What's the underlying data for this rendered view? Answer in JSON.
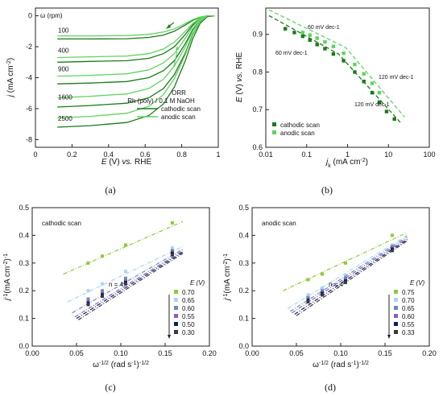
{
  "panels": {
    "a": "(a)",
    "b": "(b)",
    "c": "(c)",
    "d": "(d)"
  },
  "chart_data": [
    {
      "panel": "a",
      "type": "line",
      "xlabel": "E (V) vs. RHE",
      "ylabel": "j (mA cm-2)",
      "xlim": [
        0.0,
        1.0
      ],
      "ylim": [
        -8.5,
        0.5
      ],
      "xticks": [
        0.0,
        0.2,
        0.4,
        0.6,
        0.8,
        1.0
      ],
      "yticks": [
        0,
        -2,
        -4,
        -6,
        -8
      ],
      "omega_label": "ω (rpm)",
      "rotation_labels": [
        {
          "text": "100",
          "y": -1.3
        },
        {
          "text": "400",
          "y": -2.6
        },
        {
          "text": "900",
          "y": -3.8
        },
        {
          "text": "1600",
          "y": -5.6
        },
        {
          "text": "2500",
          "y": -7.0
        }
      ],
      "legend_title": [
        "ORR",
        "Rh (poly) / 0.1 M NaOH"
      ],
      "legend_position": "bottom-right",
      "legend": [
        {
          "name": "cathodic scan",
          "color": "#1b7a1b"
        },
        {
          "name": "anodic scan",
          "color": "#5fd35f"
        }
      ],
      "series": [
        {
          "rpm": 100,
          "scan": "cathodic",
          "x": [
            0.12,
            0.3,
            0.5,
            0.62,
            0.7,
            0.76,
            0.82,
            0.86,
            0.9,
            0.94,
            0.98
          ],
          "y": [
            -1.5,
            -1.5,
            -1.48,
            -1.4,
            -1.25,
            -1.0,
            -0.6,
            -0.3,
            -0.1,
            0.0,
            0.0
          ]
        },
        {
          "rpm": 100,
          "scan": "anodic",
          "x": [
            0.12,
            0.3,
            0.5,
            0.62,
            0.7,
            0.76,
            0.82,
            0.86,
            0.9,
            0.94,
            0.98
          ],
          "y": [
            -1.3,
            -1.3,
            -1.28,
            -1.2,
            -1.05,
            -0.85,
            -0.5,
            -0.25,
            -0.08,
            0.0,
            0.0
          ]
        },
        {
          "rpm": 400,
          "scan": "cathodic",
          "x": [
            0.12,
            0.3,
            0.5,
            0.62,
            0.7,
            0.76,
            0.82,
            0.86,
            0.9,
            0.94,
            0.98
          ],
          "y": [
            -3.0,
            -2.95,
            -2.9,
            -2.75,
            -2.45,
            -2.0,
            -1.2,
            -0.6,
            -0.2,
            0.0,
            0.0
          ]
        },
        {
          "rpm": 400,
          "scan": "anodic",
          "x": [
            0.12,
            0.3,
            0.5,
            0.62,
            0.7,
            0.76,
            0.82,
            0.86,
            0.9,
            0.94,
            0.98
          ],
          "y": [
            -2.7,
            -2.65,
            -2.6,
            -2.45,
            -2.15,
            -1.7,
            -1.0,
            -0.5,
            -0.15,
            0.0,
            0.0
          ]
        },
        {
          "rpm": 900,
          "scan": "cathodic",
          "x": [
            0.12,
            0.3,
            0.5,
            0.62,
            0.7,
            0.76,
            0.82,
            0.86,
            0.9,
            0.94,
            0.98
          ],
          "y": [
            -4.4,
            -4.35,
            -4.25,
            -4.0,
            -3.55,
            -2.9,
            -1.8,
            -0.9,
            -0.3,
            0.0,
            0.0
          ]
        },
        {
          "rpm": 900,
          "scan": "anodic",
          "x": [
            0.12,
            0.3,
            0.5,
            0.62,
            0.7,
            0.76,
            0.82,
            0.86,
            0.9,
            0.94,
            0.98
          ],
          "y": [
            -3.9,
            -3.85,
            -3.75,
            -3.5,
            -3.05,
            -2.45,
            -1.45,
            -0.7,
            -0.2,
            0.0,
            0.0
          ]
        },
        {
          "rpm": 1600,
          "scan": "cathodic",
          "x": [
            0.12,
            0.3,
            0.5,
            0.62,
            0.7,
            0.76,
            0.82,
            0.86,
            0.9,
            0.94,
            0.98
          ],
          "y": [
            -5.9,
            -5.8,
            -5.65,
            -5.3,
            -4.7,
            -3.8,
            -2.4,
            -1.2,
            -0.4,
            -0.05,
            0.0
          ]
        },
        {
          "rpm": 1600,
          "scan": "anodic",
          "x": [
            0.12,
            0.3,
            0.5,
            0.62,
            0.7,
            0.76,
            0.82,
            0.86,
            0.9,
            0.94,
            0.98
          ],
          "y": [
            -5.3,
            -5.2,
            -5.05,
            -4.7,
            -4.1,
            -3.25,
            -2.0,
            -1.0,
            -0.3,
            0.0,
            0.0
          ]
        },
        {
          "rpm": 2500,
          "scan": "cathodic",
          "x": [
            0.12,
            0.3,
            0.5,
            0.62,
            0.7,
            0.76,
            0.82,
            0.86,
            0.9,
            0.94,
            0.98
          ],
          "y": [
            -7.2,
            -7.1,
            -6.9,
            -6.45,
            -5.7,
            -4.6,
            -2.9,
            -1.5,
            -0.5,
            -0.05,
            0.0
          ]
        },
        {
          "rpm": 2500,
          "scan": "anodic",
          "x": [
            0.12,
            0.3,
            0.5,
            0.62,
            0.7,
            0.76,
            0.82,
            0.86,
            0.9,
            0.94,
            0.98
          ],
          "y": [
            -6.6,
            -6.5,
            -6.3,
            -5.85,
            -5.1,
            -4.05,
            -2.5,
            -1.25,
            -0.4,
            0.0,
            0.0
          ]
        }
      ]
    },
    {
      "panel": "b",
      "type": "scatter",
      "xlabel": "jk (mA cm-2)",
      "ylabel": "E (V) vs. RHE",
      "xscale": "log",
      "xlim": [
        0.01,
        100
      ],
      "ylim": [
        0.6,
        0.97
      ],
      "xticks": [
        0.01,
        0.1,
        1,
        10,
        100
      ],
      "xtick_labels": [
        "0.01",
        "0.1",
        "1",
        "10",
        "100"
      ],
      "yticks": [
        0.6,
        0.7,
        0.8,
        0.9
      ],
      "annotations": [
        "60 mV dec-1",
        "60 mV dec-1",
        "120 mV dec-1",
        "120 mV dec-1"
      ],
      "legend_position": "bottom-left",
      "legend": [
        {
          "name": "cathodic scan",
          "color": "#1b7a1b"
        },
        {
          "name": "anodic scan",
          "color": "#5fd35f"
        }
      ],
      "series": [
        {
          "name": "cathodic scan",
          "color": "#1b7a1b",
          "x": [
            0.03,
            0.05,
            0.08,
            0.12,
            0.18,
            0.28,
            0.45,
            0.8,
            1.5,
            2.5,
            4,
            6,
            9,
            14
          ],
          "y": [
            0.915,
            0.905,
            0.895,
            0.885,
            0.873,
            0.862,
            0.848,
            0.83,
            0.8,
            0.775,
            0.745,
            0.72,
            0.695,
            0.675
          ]
        },
        {
          "name": "anodic scan",
          "color": "#5fd35f",
          "x": [
            0.08,
            0.12,
            0.18,
            0.28,
            0.45,
            0.8,
            1.5,
            2.5,
            4,
            6
          ],
          "y": [
            0.905,
            0.898,
            0.89,
            0.88,
            0.868,
            0.85,
            0.82,
            0.795,
            0.77,
            0.745
          ]
        }
      ],
      "fit_lines": [
        {
          "color": "#1b7a1b",
          "x": [
            0.012,
            0.6,
            20
          ],
          "y": [
            0.95,
            0.848,
            0.665
          ]
        },
        {
          "color": "#5fd35f",
          "x": [
            0.012,
            0.9,
            25
          ],
          "y": [
            0.965,
            0.865,
            0.68
          ]
        }
      ]
    },
    {
      "panel": "c",
      "type": "scatter",
      "xlabel": "ω-1/2 (rad s-1)-1/2",
      "ylabel": "j-1 (mA cm-2)-1",
      "xlim": [
        0.0,
        0.2
      ],
      "ylim": [
        0.0,
        0.5
      ],
      "xticks": [
        0.0,
        0.05,
        0.1,
        0.15,
        0.2
      ],
      "xtick_labels": [
        "0.00",
        "0.05",
        "0.10",
        "0.15",
        "0.20"
      ],
      "yticks": [
        0.0,
        0.1,
        0.2,
        0.3,
        0.4,
        0.5
      ],
      "ytick_labels": [
        "0.0",
        "0.1",
        "0.2",
        "0.3",
        "0.4",
        "0.5"
      ],
      "annotation": "cathodic scan",
      "n_label": "n = 4",
      "legend_title": "E (V)",
      "legend_position": "bottom-right",
      "x": [
        0.0632,
        0.0791,
        0.1054,
        0.1581
      ],
      "series": [
        {
          "name": "0.70",
          "color": "#8fc93a",
          "values": [
            0.3,
            0.325,
            0.365,
            0.445
          ],
          "fit": [
            0.035,
            0.17,
            0.26,
            0.45
          ]
        },
        {
          "name": "0.65",
          "color": "#a9d4f5",
          "values": [
            0.2,
            0.225,
            0.27,
            0.355
          ],
          "fit": [
            0.04,
            0.17,
            0.16,
            0.36
          ]
        },
        {
          "name": "0.60",
          "color": "#6b8fa8",
          "values": [
            0.17,
            0.2,
            0.245,
            0.345
          ],
          "fit": [
            0.045,
            0.17,
            0.12,
            0.35
          ]
        },
        {
          "name": "0.55",
          "color": "#8a5cc7",
          "values": [
            0.16,
            0.19,
            0.235,
            0.34
          ],
          "fit": [
            0.048,
            0.17,
            0.105,
            0.345
          ]
        },
        {
          "name": "0.50",
          "color": "#0a1f66",
          "values": [
            0.155,
            0.185,
            0.23,
            0.335
          ],
          "fit": [
            0.05,
            0.17,
            0.1,
            0.34
          ]
        },
        {
          "name": "0.30",
          "color": "#3a3a3a",
          "values": [
            0.15,
            0.18,
            0.225,
            0.33
          ],
          "fit": [
            0.052,
            0.17,
            0.095,
            0.335
          ]
        }
      ]
    },
    {
      "panel": "d",
      "type": "scatter",
      "xlabel": "ω-1/2 (rad s-1)-1/2",
      "ylabel": "j-1 (mA cm-2)-1",
      "xlim": [
        0.0,
        0.2
      ],
      "ylim": [
        0.0,
        0.5
      ],
      "xticks": [
        0.0,
        0.05,
        0.1,
        0.15,
        0.2
      ],
      "xtick_labels": [
        "0.00",
        "0.05",
        "0.10",
        "0.15",
        "0.20"
      ],
      "yticks": [
        0.0,
        0.1,
        0.2,
        0.3,
        0.4,
        0.5
      ],
      "ytick_labels": [
        "0.0",
        "0.1",
        "0.2",
        "0.3",
        "0.4",
        "0.5"
      ],
      "annotation": "anodic scan",
      "n_label": "n = 4",
      "legend_title": "E (V)",
      "legend_position": "bottom-right",
      "x": [
        0.0632,
        0.0791,
        0.1054,
        0.1581
      ],
      "series": [
        {
          "name": "0.75",
          "color": "#8fc93a",
          "values": [
            0.24,
            0.26,
            0.3,
            0.4
          ],
          "fit": [
            0.035,
            0.175,
            0.2,
            0.41
          ]
        },
        {
          "name": "0.70",
          "color": "#a9d4f5",
          "values": [
            0.185,
            0.21,
            0.255,
            0.365
          ],
          "fit": [
            0.04,
            0.175,
            0.135,
            0.4
          ]
        },
        {
          "name": "0.65",
          "color": "#6b8fa8",
          "values": [
            0.175,
            0.2,
            0.245,
            0.36
          ],
          "fit": [
            0.043,
            0.175,
            0.125,
            0.395
          ]
        },
        {
          "name": "0.60",
          "color": "#8a5cc7",
          "values": [
            0.17,
            0.195,
            0.24,
            0.355
          ],
          "fit": [
            0.045,
            0.175,
            0.12,
            0.39
          ]
        },
        {
          "name": "0.55",
          "color": "#0a1f66",
          "values": [
            0.165,
            0.19,
            0.235,
            0.35
          ],
          "fit": [
            0.048,
            0.175,
            0.115,
            0.385
          ]
        },
        {
          "name": "0.33",
          "color": "#3a3a3a",
          "values": [
            0.16,
            0.185,
            0.23,
            0.345
          ],
          "fit": [
            0.05,
            0.175,
            0.11,
            0.38
          ]
        }
      ]
    }
  ]
}
